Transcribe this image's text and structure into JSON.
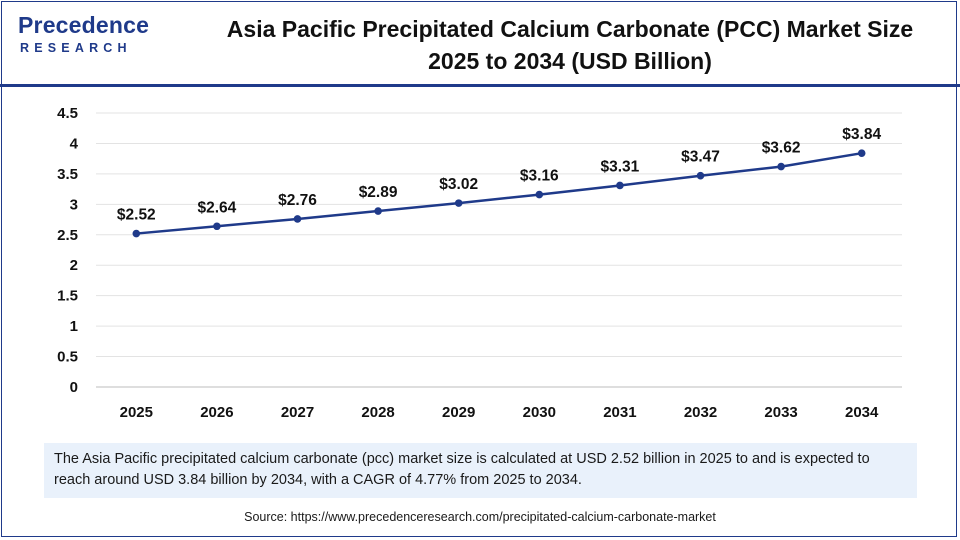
{
  "brand": {
    "name": "Precedence",
    "tagline": "RESEARCH",
    "color": "#1f3a8a"
  },
  "title": "Asia Pacific Precipitated Calcium Carbonate (PCC) Market Size 2025 to 2034 (USD Billion)",
  "chart_data": {
    "type": "line",
    "x": [
      "2025",
      "2026",
      "2027",
      "2028",
      "2029",
      "2030",
      "2031",
      "2032",
      "2033",
      "2034"
    ],
    "series": [
      {
        "values": [
          2.52,
          2.64,
          2.76,
          2.89,
          3.02,
          3.16,
          3.31,
          3.47,
          3.62,
          3.84
        ]
      }
    ],
    "data_labels": [
      "$2.52",
      "$2.64",
      "$2.76",
      "$2.89",
      "$3.02",
      "$3.16",
      "$3.31",
      "$3.47",
      "$3.62",
      "$3.84"
    ],
    "yticks": [
      "0",
      "0.5",
      "1",
      "1.5",
      "2",
      "2.5",
      "3",
      "3.5",
      "4",
      "4.5"
    ],
    "ylim": [
      0,
      4.5
    ],
    "grid": true,
    "legend": "none",
    "line_color": "#1f3a8a",
    "title": "Asia Pacific Precipitated Calcium Carbonate (PCC) Market Size 2025 to 2034 (USD Billion)",
    "xlabel": "",
    "ylabel": ""
  },
  "caption": "The Asia Pacific precipitated calcium carbonate (pcc) market size is calculated at USD 2.52 billion in 2025 to and is expected to reach around USD 3.84 billion by 2034, with a CAGR of 4.77% from 2025 to 2034.",
  "source": "Source: https://www.precedenceresearch.com/precipitated-calcium-carbonate-market"
}
